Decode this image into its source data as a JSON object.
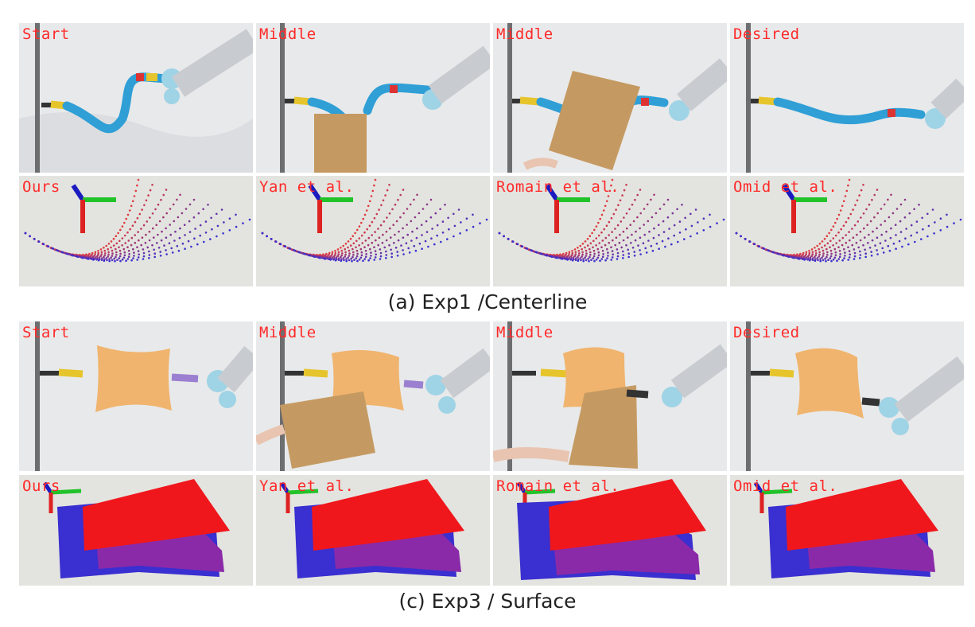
{
  "figure": {
    "sections": [
      {
        "caption": "(a) Exp1 /Centerline",
        "photo_labels": [
          "Start",
          "Middle",
          "Middle",
          "Desired"
        ],
        "sim_labels": [
          "Ours",
          "Yan et al.",
          "Romain et al.",
          "Omid et al."
        ]
      },
      {
        "caption": "(c) Exp3 / Surface",
        "photo_labels": [
          "Start",
          "Middle",
          "Middle",
          "Desired"
        ],
        "sim_labels": [
          "Ours",
          "Yan et al.",
          "Romain et al.",
          "Omid et al."
        ]
      }
    ],
    "colors": {
      "label": "#ff2a2a",
      "tube": "#2f9fd6",
      "cardboard": "#c59a62",
      "foam": "#f0b46e",
      "robot_metal": "#c8ccd0",
      "robot_joint": "#9fd3e6",
      "current_shape": "#e0393e",
      "desired_shape": "#3a2fd0",
      "sim_background": "#e3e4df"
    }
  }
}
